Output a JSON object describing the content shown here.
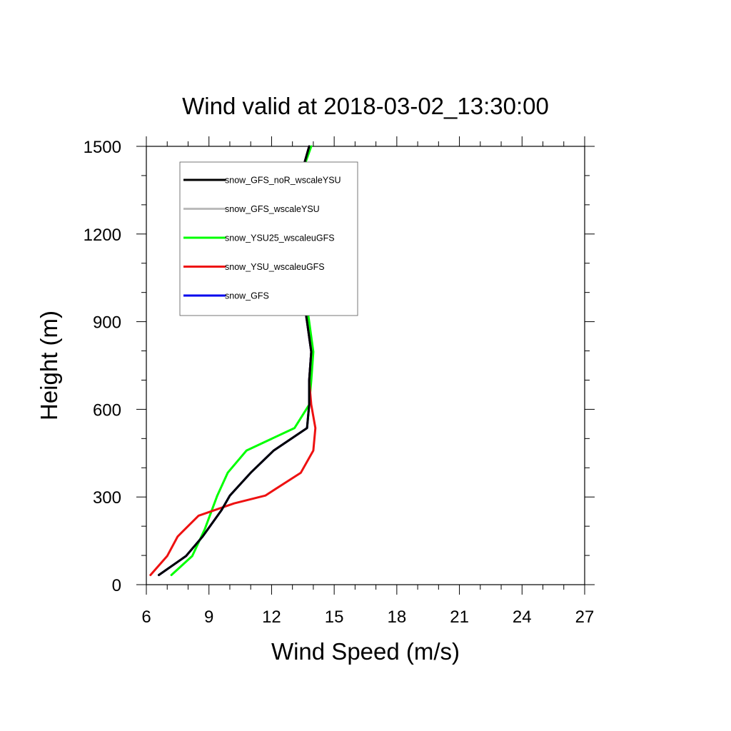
{
  "chart_data": {
    "type": "line",
    "title": "Wind valid at 2018-03-02_13:30:00",
    "xlabel": "Wind Speed (m/s)",
    "ylabel": "Height (m)",
    "xlim": [
      6,
      27
    ],
    "ylim": [
      0,
      1500
    ],
    "xticks": [
      6,
      9,
      12,
      15,
      18,
      21,
      24,
      27
    ],
    "yticks": [
      0,
      300,
      600,
      900,
      1200,
      1500
    ],
    "grid": false,
    "legend_position": "top-left",
    "series": [
      {
        "name": "snow_GFS_noR_wscaleYSU",
        "color": "#000000",
        "points": [
          [
            6.6,
            33
          ],
          [
            7.9,
            98
          ],
          [
            8.7,
            165
          ],
          [
            9.6,
            255
          ],
          [
            10.0,
            305
          ],
          [
            11.0,
            383
          ],
          [
            12.1,
            459
          ],
          [
            13.7,
            536
          ],
          [
            13.8,
            616
          ],
          [
            13.8,
            698
          ],
          [
            13.9,
            797
          ],
          [
            13.7,
            900
          ],
          [
            13.3,
            1096
          ],
          [
            13.1,
            1193
          ],
          [
            13.1,
            1293
          ],
          [
            13.4,
            1400
          ],
          [
            13.8,
            1500
          ]
        ]
      },
      {
        "name": "snow_GFS_wscaleYSU",
        "color": "#bbbbbb",
        "points": [
          [
            6.6,
            33
          ],
          [
            7.9,
            98
          ],
          [
            8.7,
            165
          ],
          [
            9.6,
            255
          ],
          [
            10.0,
            305
          ],
          [
            11.0,
            383
          ],
          [
            12.1,
            459
          ],
          [
            13.7,
            536
          ],
          [
            13.8,
            616
          ],
          [
            13.8,
            698
          ],
          [
            13.9,
            797
          ],
          [
            13.7,
            900
          ],
          [
            13.3,
            1096
          ],
          [
            13.1,
            1193
          ],
          [
            13.1,
            1293
          ],
          [
            13.4,
            1400
          ],
          [
            13.8,
            1500
          ]
        ]
      },
      {
        "name": "snow_YSU25_wscaleuGFS",
        "color": "#00ff00",
        "points": [
          [
            7.2,
            33
          ],
          [
            8.2,
            98
          ],
          [
            8.8,
            190
          ],
          [
            9.4,
            305
          ],
          [
            9.9,
            383
          ],
          [
            10.8,
            459
          ],
          [
            13.1,
            536
          ],
          [
            13.8,
            616
          ],
          [
            13.9,
            698
          ],
          [
            14.0,
            797
          ],
          [
            13.8,
            900
          ],
          [
            13.4,
            1096
          ],
          [
            13.0,
            1193
          ],
          [
            13.0,
            1293
          ],
          [
            13.4,
            1400
          ],
          [
            13.9,
            1500
          ]
        ]
      },
      {
        "name": "snow_YSU_wscaleuGFS",
        "color": "#ee1111",
        "points": [
          [
            6.2,
            33
          ],
          [
            7.0,
            98
          ],
          [
            7.5,
            165
          ],
          [
            8.5,
            236
          ],
          [
            10.2,
            278
          ],
          [
            11.7,
            305
          ],
          [
            13.4,
            383
          ],
          [
            14.0,
            459
          ],
          [
            14.1,
            536
          ],
          [
            13.9,
            616
          ],
          [
            13.8,
            698
          ],
          [
            13.9,
            797
          ],
          [
            13.7,
            900
          ],
          [
            13.3,
            1096
          ],
          [
            13.1,
            1193
          ],
          [
            13.1,
            1293
          ],
          [
            13.4,
            1400
          ],
          [
            13.8,
            1500
          ]
        ]
      },
      {
        "name": "snow_GFS",
        "color": "#0000ee",
        "points": [
          [
            6.6,
            33
          ],
          [
            7.9,
            98
          ],
          [
            8.7,
            165
          ],
          [
            9.6,
            255
          ],
          [
            10.0,
            305
          ],
          [
            11.0,
            383
          ],
          [
            12.1,
            459
          ],
          [
            13.7,
            536
          ],
          [
            13.8,
            616
          ],
          [
            13.8,
            698
          ],
          [
            13.9,
            797
          ],
          [
            13.7,
            900
          ],
          [
            13.3,
            1096
          ],
          [
            13.1,
            1193
          ],
          [
            13.1,
            1293
          ],
          [
            13.4,
            1400
          ],
          [
            13.8,
            1500
          ]
        ]
      }
    ],
    "draw_order": [
      1,
      2,
      3,
      4,
      0
    ]
  }
}
